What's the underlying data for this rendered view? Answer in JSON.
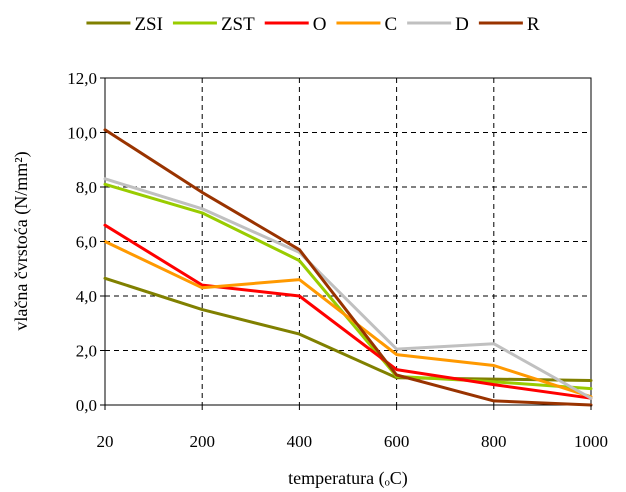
{
  "chart_data": {
    "type": "line",
    "x": [
      20,
      200,
      400,
      600,
      800,
      1000
    ],
    "x_tick_labels": [
      "20",
      "200",
      "400",
      "600",
      "800",
      "1000"
    ],
    "y_tick_labels": [
      "0,0",
      "2,0",
      "4,0",
      "6,0",
      "8,0",
      "10,0",
      "12,0"
    ],
    "ylim": [
      0,
      12
    ],
    "xlabel": "temperatura (ₒC)",
    "ylabel": "vlačna čvrstoća (N/mm²)",
    "grid": true,
    "grid_style": "dashed",
    "legend_position": "top",
    "series": [
      {
        "name": "ZSI",
        "color": "#808000",
        "values": [
          4.65,
          3.5,
          2.6,
          1.0,
          0.95,
          0.9
        ]
      },
      {
        "name": "ZST",
        "color": "#99CC00",
        "values": [
          8.1,
          7.05,
          5.3,
          1.05,
          0.85,
          0.6
        ]
      },
      {
        "name": "O",
        "color": "#FF0000",
        "values": [
          6.6,
          4.4,
          4.0,
          1.3,
          0.75,
          0.25
        ]
      },
      {
        "name": "C",
        "color": "#FF9900",
        "values": [
          6.0,
          4.3,
          4.6,
          1.85,
          1.45,
          0.3
        ]
      },
      {
        "name": "D",
        "color": "#C0C0C0",
        "values": [
          8.3,
          7.2,
          5.6,
          2.05,
          2.25,
          0.25
        ]
      },
      {
        "name": "R",
        "color": "#993300",
        "values": [
          10.1,
          7.8,
          5.7,
          1.1,
          0.15,
          0.0
        ]
      }
    ]
  }
}
